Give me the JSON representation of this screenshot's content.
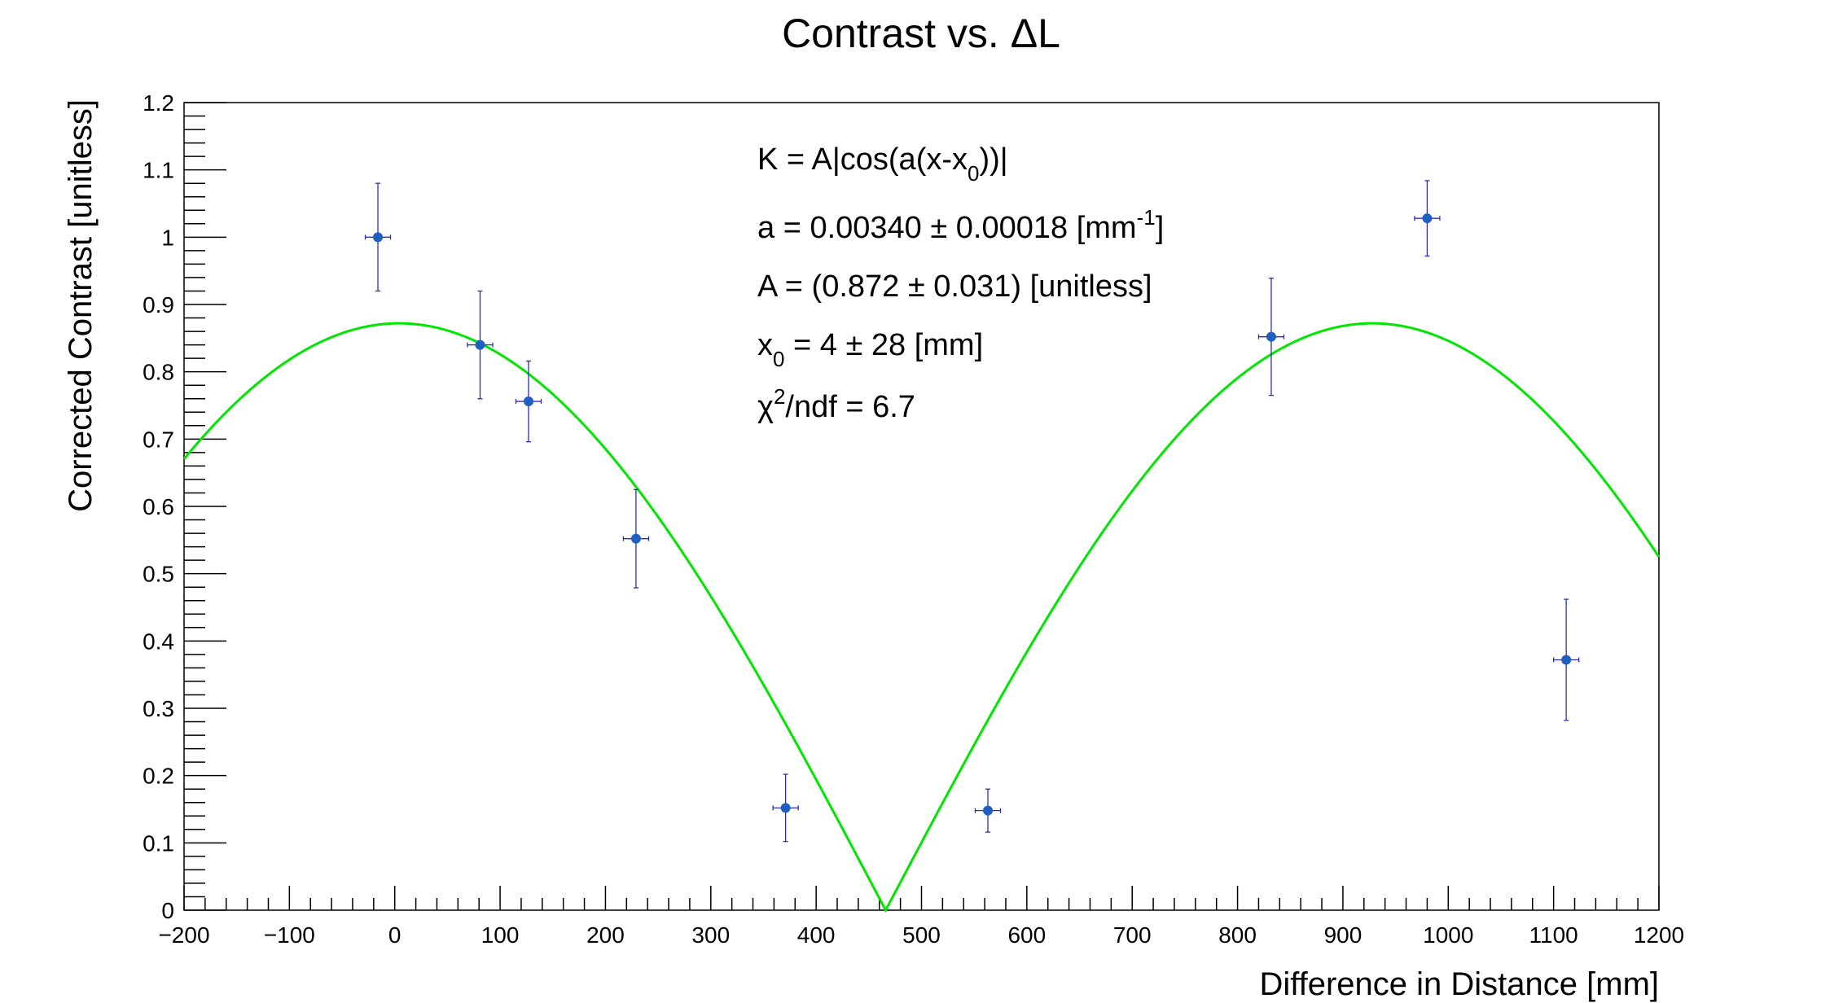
{
  "chart_data": {
    "type": "scatter",
    "title": "Contrast vs. ΔL",
    "xlabel": "Difference in Distance [mm]",
    "ylabel": "Corrected Contrast [unitless]",
    "xlim": [
      -200,
      1200
    ],
    "ylim": [
      0,
      1.2
    ],
    "x_ticks": [
      -200,
      -100,
      0,
      100,
      200,
      300,
      400,
      500,
      600,
      700,
      800,
      900,
      1000,
      1100,
      1200
    ],
    "x_tick_labels": [
      "−200",
      "−100",
      "0",
      "100",
      "200",
      "300",
      "400",
      "500",
      "600",
      "700",
      "800",
      "900",
      "1000",
      "1100",
      "1200"
    ],
    "y_ticks": [
      0,
      0.1,
      0.2,
      0.3,
      0.4,
      0.5,
      0.6,
      0.7,
      0.8,
      0.9,
      1,
      1.1,
      1.2
    ],
    "y_tick_labels": [
      "0",
      "0.1",
      "0.2",
      "0.3",
      "0.4",
      "0.5",
      "0.6",
      "0.7",
      "0.8",
      "0.9",
      "1",
      "1.1",
      "1.2"
    ],
    "grid": false,
    "series": [
      {
        "marker_color": "#1f5fbf",
        "errorbar_color": "#2d2db4",
        "points": [
          {
            "x": -16,
            "y": 1.0,
            "xerr": 12,
            "yerr": 0.08
          },
          {
            "x": 81,
            "y": 0.84,
            "xerr": 12,
            "yerr": 0.08
          },
          {
            "x": 127,
            "y": 0.756,
            "xerr": 12,
            "yerr": 0.06
          },
          {
            "x": 229,
            "y": 0.552,
            "xerr": 12,
            "yerr": 0.073
          },
          {
            "x": 371,
            "y": 0.152,
            "xerr": 12,
            "yerr": 0.05
          },
          {
            "x": 563,
            "y": 0.148,
            "xerr": 12,
            "yerr": 0.032
          },
          {
            "x": 832,
            "y": 0.852,
            "xerr": 12,
            "yerr": 0.087
          },
          {
            "x": 980,
            "y": 1.028,
            "xerr": 12,
            "yerr": 0.056
          },
          {
            "x": 1112,
            "y": 0.372,
            "xerr": 12,
            "yerr": 0.09
          }
        ]
      }
    ],
    "fit": {
      "color": "#00e600",
      "A": 0.872,
      "a": 0.0034,
      "x0": 4
    },
    "annotations": {
      "formula_pre": "K = A|cos(a(x-x",
      "formula_sub": "0",
      "formula_post": "))|",
      "a_pre": "a = 0.00340 ± 0.00018 [mm",
      "a_sup": "-1",
      "a_post": "]",
      "A_line": "A = (0.872 ± 0.031) [unitless]",
      "x0_pre": "x",
      "x0_sub": "0",
      "x0_post": " = 4 ± 28 [mm]",
      "chi_pre": "χ",
      "chi_sup": "2",
      "chi_post": "/ndf = 6.7"
    }
  }
}
